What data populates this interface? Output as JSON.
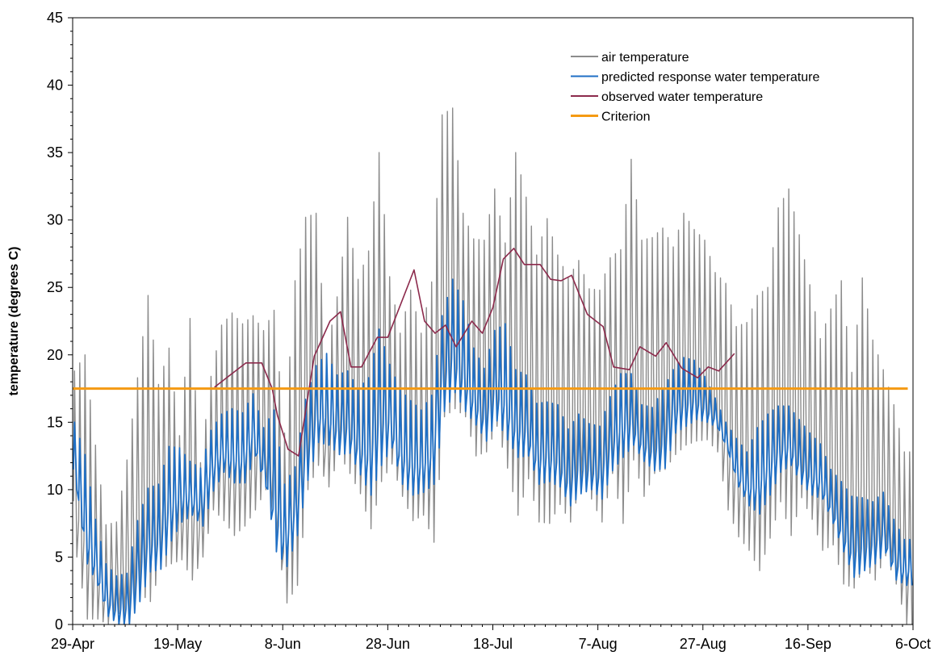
{
  "chart_data": {
    "type": "line",
    "title": "",
    "xlabel": "",
    "ylabel": "temperature (degrees C)",
    "ylim": [
      0,
      45
    ],
    "yticks": [
      0,
      5,
      10,
      15,
      20,
      25,
      30,
      35,
      40,
      45
    ],
    "xlim": [
      "2005-04-29",
      "2005-10-06"
    ],
    "xticks": [
      "29-Apr",
      "19-May",
      "8-Jun",
      "28-Jun",
      "18-Jul",
      "7-Aug",
      "27-Aug",
      "16-Sep",
      "6-Oct"
    ],
    "grid": false,
    "legend_position": "top-right",
    "series": [
      {
        "name": "air temperature",
        "color": "#8c8c8c",
        "style": "diurnal",
        "note_values": "daily max and min",
        "dates": [
          "2005-04-29",
          "2005-05-01",
          "2005-05-03",
          "2005-05-05",
          "2005-05-07",
          "2005-05-09",
          "2005-05-11",
          "2005-05-13",
          "2005-05-15",
          "2005-05-17",
          "2005-05-19",
          "2005-05-21",
          "2005-05-23",
          "2005-05-25",
          "2005-05-27",
          "2005-05-29",
          "2005-05-31",
          "2005-06-02",
          "2005-06-04",
          "2005-06-06",
          "2005-06-08",
          "2005-06-10",
          "2005-06-12",
          "2005-06-14",
          "2005-06-16",
          "2005-06-18",
          "2005-06-20",
          "2005-06-22",
          "2005-06-24",
          "2005-06-26",
          "2005-06-28",
          "2005-06-30",
          "2005-07-02",
          "2005-07-04",
          "2005-07-06",
          "2005-07-08",
          "2005-07-10",
          "2005-07-12",
          "2005-07-14",
          "2005-07-16",
          "2005-07-18",
          "2005-07-20",
          "2005-07-22",
          "2005-07-24",
          "2005-07-26",
          "2005-07-28",
          "2005-07-30",
          "2005-08-01",
          "2005-08-03",
          "2005-08-05",
          "2005-08-07",
          "2005-08-09",
          "2005-08-11",
          "2005-08-13",
          "2005-08-15",
          "2005-08-17",
          "2005-08-19",
          "2005-08-21",
          "2005-08-23",
          "2005-08-25",
          "2005-08-27",
          "2005-08-29",
          "2005-08-31",
          "2005-09-02",
          "2005-09-04",
          "2005-09-06",
          "2005-09-08",
          "2005-09-10",
          "2005-09-12",
          "2005-09-14",
          "2005-09-16",
          "2005-09-18",
          "2005-09-20",
          "2005-09-22",
          "2005-09-24",
          "2005-09-26",
          "2005-09-28",
          "2005-09-30",
          "2005-10-02",
          "2005-10-04"
        ],
        "max": [
          18.8,
          20,
          13.3,
          7.4,
          7.6,
          12.2,
          18.3,
          24.4,
          17.8,
          20.5,
          14,
          22.7,
          12,
          18.4,
          22.2,
          23.1,
          22.3,
          22.9,
          21.8,
          23.3,
          14.2,
          25.5,
          30.2,
          30.5,
          20.1,
          24.3,
          30.2,
          25.6,
          27.7,
          35,
          25.8,
          21.6,
          24.8,
          21.6,
          25.4,
          37.8,
          38.3,
          30.5,
          28.6,
          28.5,
          32.3,
          28.3,
          35,
          31.7,
          27.4,
          30.1,
          27.4,
          25.7,
          27,
          24.9,
          24.8,
          27.2,
          27.8,
          34.5,
          28.5,
          28.7,
          29.4,
          28,
          30.5,
          29.3,
          28.5,
          26.1,
          25.3,
          22.1,
          22.4,
          24.4,
          25,
          30.9,
          32.3,
          28.9,
          25.2,
          21.2,
          23.4,
          25.5,
          18.7,
          25.7,
          21.1,
          18.9,
          16.3,
          12.8
        ],
        "min": [
          5,
          0.4,
          0.4,
          0,
          0.8,
          0.3,
          2.3,
          1.7,
          4.1,
          4.5,
          4.8,
          3.3,
          5,
          8.5,
          7.7,
          6.6,
          7.3,
          8.5,
          10,
          6.5,
          1.6,
          2.9,
          10,
          11.8,
          10.2,
          12.6,
          11.2,
          9.7,
          7.1,
          10.6,
          11.9,
          9.5,
          7.7,
          8.1,
          6.1,
          15.4,
          16,
          15.4,
          12.5,
          12.8,
          14.7,
          11.6,
          8.1,
          10.8,
          7.6,
          7.5,
          8.9,
          7.6,
          10.4,
          9.3,
          7.6,
          11.2,
          7.5,
          12.2,
          9.5,
          11.2,
          11.5,
          12.6,
          13.3,
          13.6,
          13.7,
          12.8,
          8.5,
          6.5,
          5.5,
          4,
          6.4,
          9.1,
          6.6,
          9.4,
          7.8,
          5.5,
          5.9,
          3,
          2.7,
          4.3,
          3.3,
          5.1,
          3,
          0
        ]
      },
      {
        "name": "predicted response water temperature",
        "color": "#1f6fc5",
        "style": "diurnal",
        "note_values": "daily max and min",
        "dates": [
          "2005-04-29",
          "2005-05-01",
          "2005-05-03",
          "2005-05-05",
          "2005-05-07",
          "2005-05-09",
          "2005-05-11",
          "2005-05-13",
          "2005-05-15",
          "2005-05-17",
          "2005-05-19",
          "2005-05-21",
          "2005-05-23",
          "2005-05-25",
          "2005-05-27",
          "2005-05-29",
          "2005-05-31",
          "2005-06-02",
          "2005-06-04",
          "2005-06-06",
          "2005-06-08",
          "2005-06-10",
          "2005-06-12",
          "2005-06-14",
          "2005-06-16",
          "2005-06-18",
          "2005-06-20",
          "2005-06-22",
          "2005-06-24",
          "2005-06-26",
          "2005-06-28",
          "2005-06-30",
          "2005-07-02",
          "2005-07-04",
          "2005-07-06",
          "2005-07-08",
          "2005-07-10",
          "2005-07-12",
          "2005-07-14",
          "2005-07-16",
          "2005-07-18",
          "2005-07-20",
          "2005-07-22",
          "2005-07-24",
          "2005-07-26",
          "2005-07-28",
          "2005-07-30",
          "2005-08-01",
          "2005-08-03",
          "2005-08-05",
          "2005-08-07",
          "2005-08-09",
          "2005-08-11",
          "2005-08-13",
          "2005-08-15",
          "2005-08-17",
          "2005-08-19",
          "2005-08-21",
          "2005-08-23",
          "2005-08-25",
          "2005-08-27",
          "2005-08-29",
          "2005-08-31",
          "2005-09-02",
          "2005-09-04",
          "2005-09-06",
          "2005-09-08",
          "2005-09-10",
          "2005-09-12",
          "2005-09-14",
          "2005-09-16",
          "2005-09-18",
          "2005-09-20",
          "2005-09-22",
          "2005-09-24",
          "2005-09-26",
          "2005-09-28",
          "2005-09-30",
          "2005-10-02",
          "2005-10-04"
        ],
        "max": [
          15,
          12.6,
          7.8,
          4.5,
          3.6,
          3.8,
          7.7,
          10.1,
          10.4,
          13.2,
          13.1,
          12.1,
          11.6,
          14.4,
          15.6,
          16,
          15.7,
          17.1,
          14.6,
          15.9,
          10.4,
          11.7,
          16.7,
          19.2,
          20.1,
          18.5,
          18.8,
          17.5,
          18.3,
          21.9,
          19.3,
          17.4,
          16.6,
          15.9,
          17,
          22.9,
          25.6,
          24,
          20.5,
          19,
          21.8,
          22.3,
          18.9,
          18.5,
          16.4,
          16.5,
          16.3,
          14.5,
          15.6,
          14.9,
          14.7,
          16.9,
          18.6,
          18.6,
          16.3,
          16.1,
          17.4,
          18.9,
          19.8,
          19.6,
          18.4,
          16.8,
          15,
          13.8,
          12.8,
          14.6,
          15.6,
          16.2,
          16.2,
          15.2,
          14.2,
          13.4,
          11.5,
          10.6,
          9.5,
          9.4,
          9.1,
          9.8,
          7.8,
          6.3
        ],
        "min": [
          10,
          4.5,
          2.9,
          0.6,
          0,
          0,
          1.7,
          3.9,
          4.1,
          6.2,
          7.6,
          8.1,
          7.3,
          9.9,
          11.3,
          10.5,
          10.5,
          12.5,
          10.2,
          5.4,
          4.3,
          6.6,
          10.7,
          13.5,
          13.3,
          12.6,
          12.7,
          11.1,
          9.6,
          11.8,
          13.1,
          10.4,
          9.6,
          9.8,
          10.4,
          15.8,
          17.2,
          15.8,
          14.8,
          13.6,
          15.1,
          13.7,
          12.4,
          12.5,
          10.4,
          10.6,
          10.2,
          8.8,
          9.7,
          10,
          9.3,
          11.4,
          12.4,
          13.3,
          12.1,
          11.4,
          11.6,
          14.2,
          14.7,
          15.2,
          15,
          14.6,
          12.9,
          10.2,
          8.8,
          8.2,
          9.6,
          11.3,
          11.8,
          10.4,
          9.6,
          9.3,
          7.5,
          5.4,
          3.5,
          4,
          4.5,
          5.3,
          3.3,
          2.9
        ]
      },
      {
        "name": "observed water temperature",
        "color": "#8c2a4c",
        "style": "line",
        "dates": [
          "2005-05-26",
          "2005-05-29",
          "2005-06-01",
          "2005-06-04",
          "2005-06-06",
          "2005-06-07",
          "2005-06-09",
          "2005-06-11",
          "2005-06-14",
          "2005-06-17",
          "2005-06-19",
          "2005-06-21",
          "2005-06-23",
          "2005-06-26",
          "2005-06-28",
          "2005-07-01",
          "2005-07-03",
          "2005-07-05",
          "2005-07-07",
          "2005-07-09",
          "2005-07-11",
          "2005-07-14",
          "2005-07-16",
          "2005-07-18",
          "2005-07-20",
          "2005-07-22",
          "2005-07-24",
          "2005-07-27",
          "2005-07-29",
          "2005-07-31",
          "2005-08-02",
          "2005-08-05",
          "2005-08-08",
          "2005-08-10",
          "2005-08-13",
          "2005-08-15",
          "2005-08-18",
          "2005-08-20",
          "2005-08-23",
          "2005-08-26",
          "2005-08-28",
          "2005-08-30",
          "2005-09-02"
        ],
        "values": [
          17.6,
          18.5,
          19.4,
          19.4,
          17.5,
          15.5,
          13,
          12.5,
          19.9,
          22.5,
          23.2,
          19.1,
          19.1,
          21.3,
          21.3,
          24.3,
          26.3,
          22.5,
          21.6,
          22.2,
          20.6,
          22.5,
          21.6,
          23.5,
          27.1,
          27.9,
          26.7,
          26.7,
          25.6,
          25.5,
          25.9,
          23,
          22.1,
          19.1,
          18.9,
          20.6,
          19.9,
          20.9,
          19,
          18.3,
          19.1,
          18.8,
          20.1
        ]
      },
      {
        "name": "Criterion",
        "color": "#f59a12",
        "style": "line",
        "dates": [
          "2005-04-29",
          "2005-10-05"
        ],
        "values": [
          17.5,
          17.5
        ]
      }
    ]
  }
}
